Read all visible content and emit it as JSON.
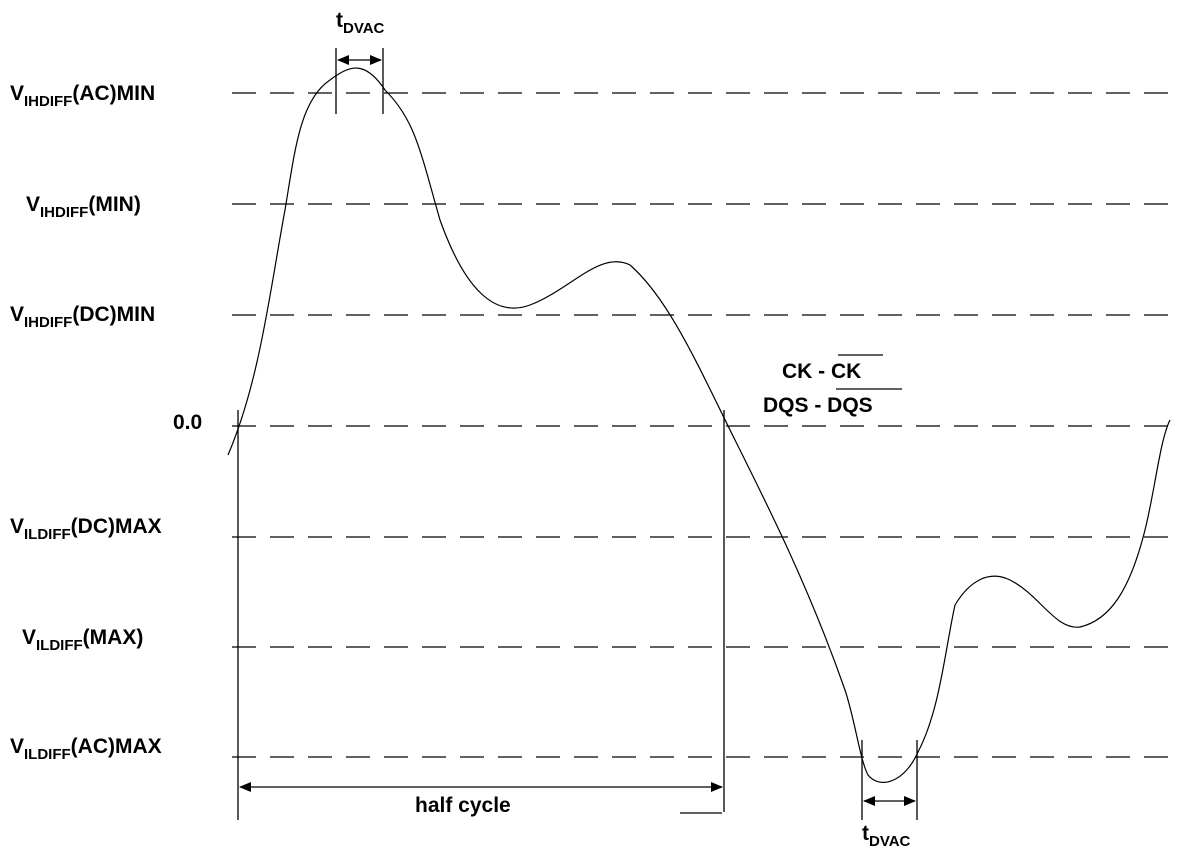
{
  "levels": [
    {
      "id": "vih_ac",
      "main": "V",
      "sub": "IHDIFF",
      "suffix": "(AC)MIN"
    },
    {
      "id": "vih_min",
      "main": "V",
      "sub": "IHDIFF",
      "suffix": "(MIN)"
    },
    {
      "id": "vih_dc",
      "main": "V",
      "sub": "IHDIFF",
      "suffix": "(DC)MIN"
    },
    {
      "id": "zero",
      "main": "0.0",
      "sub": "",
      "suffix": ""
    },
    {
      "id": "vil_dc",
      "main": "V",
      "sub": "ILDIFF",
      "suffix": "(DC)MAX"
    },
    {
      "id": "vil_max",
      "main": "V",
      "sub": "ILDIFF",
      "suffix": "(MAX)"
    },
    {
      "id": "vil_ac",
      "main": "V",
      "sub": "ILDIFF",
      "suffix": "(AC)MAX"
    }
  ],
  "tdvac_top": {
    "main": "t",
    "sub": "DVAC"
  },
  "tdvac_bottom": {
    "main": "t",
    "sub": "DVAC"
  },
  "half_cycle": "half cycle",
  "signal_ck": {
    "prefix": "CK - ",
    "overbar": "CK"
  },
  "signal_dqs": {
    "prefix": "DQS - ",
    "overbar": "DQS"
  },
  "colors": {
    "line": "#000000",
    "background": "#ffffff"
  }
}
